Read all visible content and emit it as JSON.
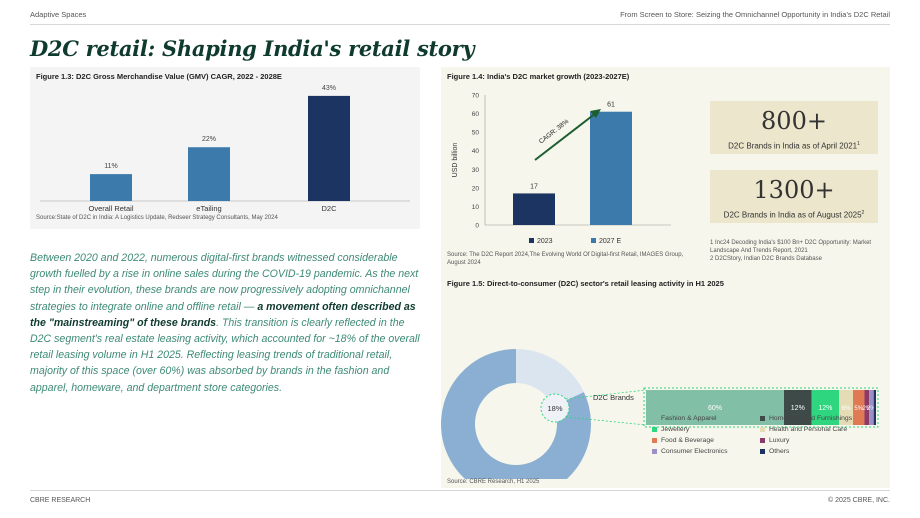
{
  "header": {
    "left": "Adaptive Spaces",
    "right": "From Screen to Store: Seizing the Omnichannel Opportunity in India's D2C Retail"
  },
  "page_title": "D2C retail: Shaping India's retail story",
  "fig13": {
    "title": "Figure 1.3: D2C Gross Merchandise Value (GMV) CAGR, 2022 - 2028E",
    "source": "Source:State of D2C in India: A Logistics Update, Redseer Strategy Consultants, May 2024"
  },
  "fig14": {
    "title": "Figure 1.4: India's D2C market growth (2023-2027E)",
    "cagr_label": "CAGR: 38%",
    "source": "Source: The D2C Report 2024,The Evolving World Of Digital-first Retail, IMAGES Group, August 2024"
  },
  "stats": [
    {
      "value": "800+",
      "label": "D2C Brands in India as of April 2021",
      "note_ref": "1"
    },
    {
      "value": "1300+",
      "label": "D2C Brands in India as of August 2025",
      "note_ref": "2"
    }
  ],
  "notes": {
    "n1": "1 Inc24 Decoding India's $100 Bn+ D2C Opportunity: Market Landscape And Trends Report, 2021",
    "n2": "2 D2CStory, Indian D2C Brands Database"
  },
  "fig15": {
    "title": "Figure 1.5: Direct-to-consumer (D2C) sector's retail leasing activity in H1 2025",
    "source": "Source: CBRE Research, H1 2025",
    "d2c_label": "D2C Brands"
  },
  "body": {
    "p1": "Between 2020 and 2022, numerous digital-first brands witnessed considerable growth fuelled by a rise in online sales during the COVID-19 pandemic. As the next step in their evolution, these brands are now progressively adopting omnichannel strategies to integrate online and offline retail — ",
    "emphasis": "a movement often described as the \"mainstreaming\" of these brands",
    "p2": ". This transition is clearly reflected in the D2C segment's real estate leasing activity, which accounted for ~18% of the overall retail leasing volume in H1 2025. Reflecting leasing trends of traditional retail, majority of this space (over 60%) was absorbed by brands in the fashion and apparel, homeware, and department store categories."
  },
  "footer": {
    "left": "CBRE RESEARCH",
    "right": "© 2025 CBRE, INC."
  },
  "chart_data": [
    {
      "type": "bar",
      "title": "Figure 1.3: D2C Gross Merchandise Value (GMV) CAGR, 2022 - 2028E",
      "categories": [
        "Overall Retail",
        "eTailing",
        "D2C"
      ],
      "values": [
        11,
        22,
        43
      ],
      "value_labels": [
        "11%",
        "22%",
        "43%"
      ],
      "colors": [
        "#3c7aac",
        "#3c7aac",
        "#1c3461"
      ],
      "ylim": [
        0,
        45
      ]
    },
    {
      "type": "bar",
      "title": "Figure 1.4: India's D2C market growth (2023-2027E)",
      "ylabel": "USD billion",
      "ylim": [
        0,
        70
      ],
      "yticks": [
        0,
        10,
        20,
        30,
        40,
        50,
        60,
        70
      ],
      "categories": [
        "2023",
        "2027 E"
      ],
      "values": [
        17,
        61
      ],
      "colors": [
        "#1c3461",
        "#3c7aac"
      ],
      "legend": [
        "2023",
        "2027 E"
      ],
      "annotation": "CAGR: 38%"
    },
    {
      "type": "pie",
      "title": "Figure 1.5: Direct-to-consumer (D2C) sector's retail leasing activity in H1 2025",
      "slices": [
        {
          "label": "",
          "value": 82,
          "value_label": "82%",
          "color": "#8aafd2"
        },
        {
          "label": "D2C Brands",
          "value": 18,
          "value_label": "18%",
          "color": "#dbe5f0"
        }
      ]
    },
    {
      "type": "bar",
      "stacked": true,
      "title": "D2C Brands",
      "series": [
        {
          "name": "Fashion & Apparel",
          "value": 60,
          "value_label": "60%",
          "color": "#81bfa6"
        },
        {
          "name": "Homeware and Furnishings",
          "value": 12,
          "value_label": "12%",
          "color": "#3e4a48"
        },
        {
          "name": "Jewellery",
          "value": 12,
          "value_label": "12%",
          "color": "#2ed67f"
        },
        {
          "name": "Health and Personal Care",
          "value": 6,
          "value_label": "6%",
          "color": "#e5dcb6"
        },
        {
          "name": "Food & Beverage",
          "value": 5,
          "value_label": "5%",
          "color": "#e07a55"
        },
        {
          "name": "Luxury",
          "value": 2,
          "value_label": "2%",
          "color": "#8c3a6a"
        },
        {
          "name": "Consumer Electronics",
          "value": 2,
          "value_label": "2%",
          "color": "#9b8fc4"
        },
        {
          "name": "Others",
          "value": 1,
          "value_label": "",
          "color": "#1c3461"
        }
      ]
    }
  ]
}
